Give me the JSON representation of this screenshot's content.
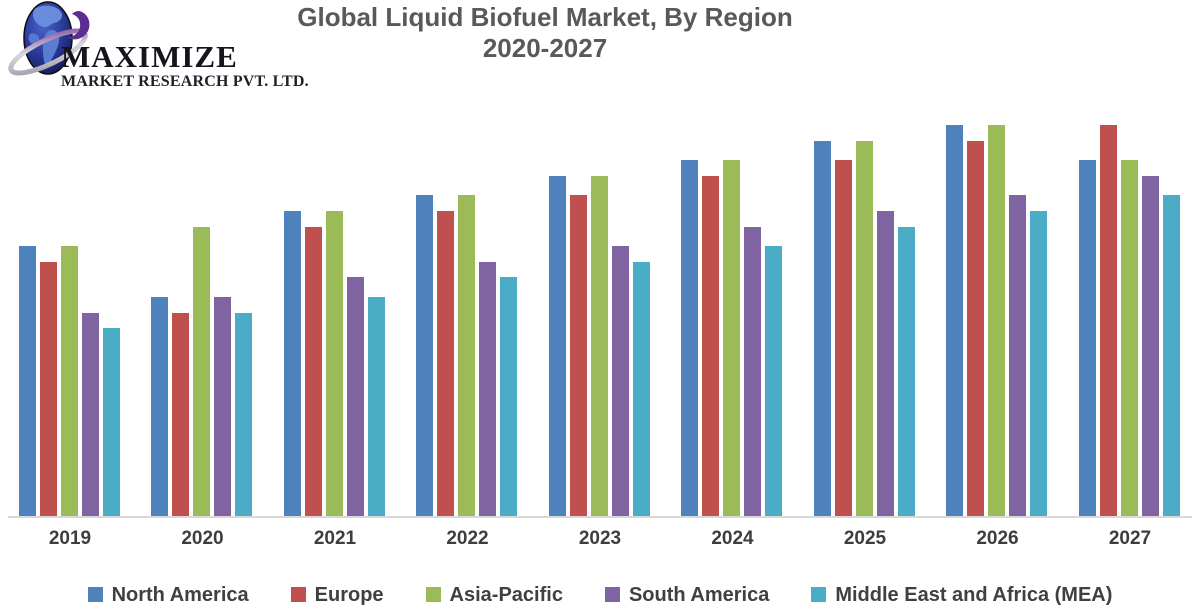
{
  "logo": {
    "name": "MAXIMIZE",
    "subtitle": "MARKET RESEARCH PVT. LTD.",
    "globe_icon": "globe-with-orbit-swoosh-icon",
    "colors": {
      "globe_dark": "#1c2260",
      "globe_mid": "#3c55b4",
      "continent": "#6b8fe0",
      "ring_silver": "#b9b9c2",
      "swoosh_purple": "#5b2d8e",
      "text": "#15151d"
    }
  },
  "chart": {
    "title_line1": "Global Liquid Biofuel Market, By Region",
    "title_line2": "2020-2027"
  },
  "chart_data": {
    "type": "bar",
    "title": "Global Liquid Biofuel Market, By Region 2020-2027",
    "categories": [
      "2019",
      "2020",
      "2021",
      "2022",
      "2023",
      "2024",
      "2025",
      "2026",
      "2027"
    ],
    "series": [
      {
        "name": "North America",
        "color": "#4F81BD",
        "values": [
          69,
          56,
          78,
          82,
          87,
          91,
          96,
          100,
          91
        ]
      },
      {
        "name": "Europe",
        "color": "#C0504D",
        "values": [
          65,
          52,
          74,
          78,
          82,
          87,
          91,
          96,
          100
        ]
      },
      {
        "name": "Asia-Pacific",
        "color": "#9BBB59",
        "values": [
          69,
          74,
          78,
          82,
          87,
          91,
          96,
          100,
          91
        ]
      },
      {
        "name": "South America",
        "color": "#8064A2",
        "values": [
          52,
          56,
          61,
          65,
          69,
          74,
          78,
          82,
          87
        ]
      },
      {
        "name": "Middle East and Africa (MEA)",
        "color": "#4BACC6",
        "values": [
          48,
          52,
          56,
          61,
          65,
          69,
          74,
          78,
          82
        ]
      }
    ],
    "xlabel": "",
    "ylabel": "",
    "y_axis_visible": false,
    "value_units": "relative index (no y-axis labels shown; 100 = tallest bar)",
    "grid": false,
    "legend_position": "bottom",
    "axis_color": "#d9d9d9"
  }
}
